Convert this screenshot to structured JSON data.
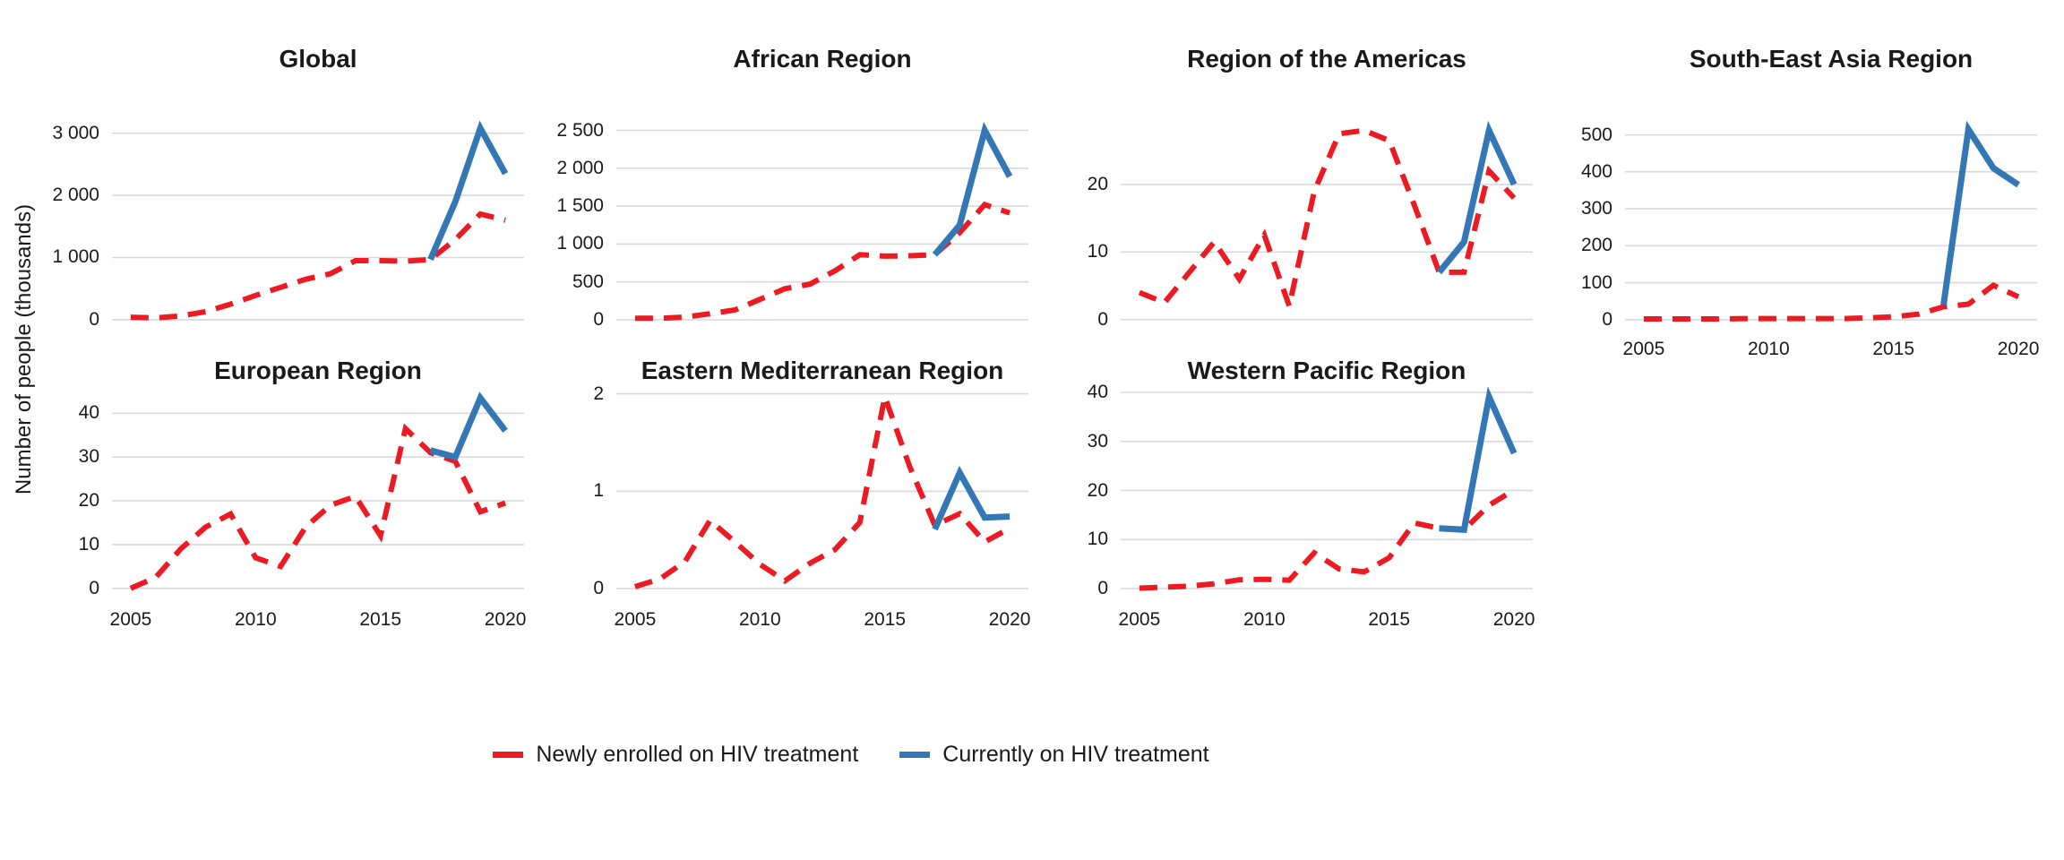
{
  "figure": {
    "y_axis_title": "Number of people (thousands)",
    "background_color": "#ffffff",
    "gridline_color": "#d9d9d9",
    "text_color": "#1a1a1a"
  },
  "legend": {
    "items": [
      {
        "label": "Newly enrolled on HIV treatment",
        "color": "#ec1b23",
        "style": "dashed"
      },
      {
        "label": "Currently on HIV treatment",
        "color": "#3377b5",
        "style": "solid"
      }
    ]
  },
  "chart_data": [
    {
      "type": "line",
      "title": "Global",
      "row": 0,
      "col": 0,
      "years": [
        2005,
        2006,
        2007,
        2008,
        2009,
        2010,
        2011,
        2012,
        2013,
        2014,
        2015,
        2016,
        2017,
        2018,
        2019,
        2020
      ],
      "xlim": [
        2004.25,
        2020.75
      ],
      "ylim": [
        -160,
        3240
      ],
      "grid": true,
      "yticks": [
        {
          "value": 0,
          "label": "0"
        },
        {
          "value": 1000,
          "label": "1 000"
        },
        {
          "value": 2000,
          "label": "2 000"
        },
        {
          "value": 3000,
          "label": "3 000"
        }
      ],
      "show_x_labels": false,
      "xticks": {
        "values": [
          2005,
          2010,
          2015,
          2020
        ],
        "labels": [
          "2005",
          "2010",
          "2015",
          "2020"
        ]
      },
      "series": [
        {
          "name": "Newly enrolled on HIV treatment",
          "role": "newly-enrolled",
          "color": "#ec1b23",
          "dashed": true,
          "x_start": 2005,
          "values": [
            40,
            30,
            60,
            130,
            250,
            390,
            520,
            650,
            740,
            950,
            950,
            940,
            970,
            1290,
            1700,
            1600
          ]
        },
        {
          "name": "Currently on HIV treatment",
          "role": "currently-on",
          "color": "#3377b5",
          "dashed": false,
          "x_start": 2017,
          "values": [
            970,
            1900,
            3080,
            2350
          ]
        }
      ]
    },
    {
      "type": "line",
      "title": "African Region",
      "row": 0,
      "col": 1,
      "years": [
        2005,
        2006,
        2007,
        2008,
        2009,
        2010,
        2011,
        2012,
        2013,
        2014,
        2015,
        2016,
        2017,
        2018,
        2019,
        2020
      ],
      "xlim": [
        2004.25,
        2020.75
      ],
      "ylim": [
        -130,
        2660
      ],
      "grid": true,
      "yticks": [
        {
          "value": 0,
          "label": "0"
        },
        {
          "value": 500,
          "label": "500"
        },
        {
          "value": 1000,
          "label": "1 000"
        },
        {
          "value": 1500,
          "label": "1 500"
        },
        {
          "value": 2000,
          "label": "2 000"
        },
        {
          "value": 2500,
          "label": "2 500"
        }
      ],
      "show_x_labels": false,
      "xticks": {
        "values": [
          2005,
          2010,
          2015,
          2020
        ],
        "labels": [
          "2005",
          "2010",
          "2015",
          "2020"
        ]
      },
      "series": [
        {
          "name": "Newly enrolled on HIV treatment",
          "role": "newly-enrolled",
          "color": "#ec1b23",
          "dashed": true,
          "x_start": 2005,
          "values": [
            20,
            20,
            35,
            80,
            130,
            270,
            410,
            470,
            645,
            860,
            840,
            845,
            860,
            1150,
            1520,
            1410
          ]
        },
        {
          "name": "Currently on HIV treatment",
          "role": "currently-on",
          "color": "#3377b5",
          "dashed": false,
          "x_start": 2017,
          "values": [
            860,
            1250,
            2500,
            1890
          ]
        }
      ]
    },
    {
      "type": "line",
      "title": "Region of the Americas",
      "row": 0,
      "col": 2,
      "years": [
        2005,
        2006,
        2007,
        2008,
        2009,
        2010,
        2011,
        2012,
        2013,
        2014,
        2015,
        2016,
        2017,
        2018,
        2019,
        2020
      ],
      "xlim": [
        2004.25,
        2020.75
      ],
      "ylim": [
        -1.5,
        29.8
      ],
      "grid": true,
      "yticks": [
        {
          "value": 0,
          "label": "0"
        },
        {
          "value": 10,
          "label": "10"
        },
        {
          "value": 20,
          "label": "20"
        }
      ],
      "show_x_labels": false,
      "xticks": {
        "values": [
          2005,
          2010,
          2015,
          2020
        ],
        "labels": [
          "2005",
          "2010",
          "2015",
          "2020"
        ]
      },
      "series": [
        {
          "name": "Newly enrolled on HIV treatment",
          "role": "newly-enrolled",
          "color": "#ec1b23",
          "dashed": true,
          "x_start": 2005,
          "values": [
            4,
            2.5,
            7,
            11.5,
            6,
            12.5,
            2,
            19,
            27.5,
            28,
            26.5,
            17,
            7,
            7,
            22,
            18
          ]
        },
        {
          "name": "Currently on HIV treatment",
          "role": "currently-on",
          "color": "#3377b5",
          "dashed": false,
          "x_start": 2017,
          "values": [
            7,
            11.5,
            28,
            20
          ]
        }
      ]
    },
    {
      "type": "line",
      "title": "South-East Asia Region",
      "row": 0,
      "col": 3,
      "years": [
        2005,
        2006,
        2007,
        2008,
        2009,
        2010,
        2011,
        2012,
        2013,
        2014,
        2015,
        2016,
        2017,
        2018,
        2019,
        2020
      ],
      "xlim": [
        2004.25,
        2020.75
      ],
      "ylim": [
        -27,
        545
      ],
      "grid": true,
      "yticks": [
        {
          "value": 0,
          "label": "0"
        },
        {
          "value": 100,
          "label": "100"
        },
        {
          "value": 200,
          "label": "200"
        },
        {
          "value": 300,
          "label": "300"
        },
        {
          "value": 400,
          "label": "400"
        },
        {
          "value": 500,
          "label": "500"
        }
      ],
      "show_x_labels": true,
      "xticks": {
        "values": [
          2005,
          2010,
          2015,
          2020
        ],
        "labels": [
          "2005",
          "2010",
          "2015",
          "2020"
        ]
      },
      "series": [
        {
          "name": "Newly enrolled on HIV treatment",
          "role": "newly-enrolled",
          "color": "#ec1b23",
          "dashed": true,
          "x_start": 2005,
          "values": [
            2,
            2,
            2,
            2,
            3,
            3,
            3,
            3,
            3,
            5,
            8,
            15,
            35,
            42,
            93,
            62
          ]
        },
        {
          "name": "Currently on HIV treatment",
          "role": "currently-on",
          "color": "#3377b5",
          "dashed": false,
          "x_start": 2017,
          "values": [
            40,
            515,
            410,
            365
          ]
        }
      ]
    },
    {
      "type": "line",
      "title": "European Region",
      "row": 1,
      "col": 0,
      "years": [
        2005,
        2006,
        2007,
        2008,
        2009,
        2010,
        2011,
        2012,
        2013,
        2014,
        2015,
        2016,
        2017,
        2018,
        2019,
        2020
      ],
      "xlim": [
        2004.25,
        2020.75
      ],
      "ylim": [
        -2.3,
        46
      ],
      "grid": true,
      "yticks": [
        {
          "value": 0,
          "label": "0"
        },
        {
          "value": 10,
          "label": "10"
        },
        {
          "value": 20,
          "label": "20"
        },
        {
          "value": 30,
          "label": "30"
        },
        {
          "value": 40,
          "label": "40"
        }
      ],
      "show_x_labels": true,
      "xticks": {
        "values": [
          2005,
          2010,
          2015,
          2020
        ],
        "labels": [
          "2005",
          "2010",
          "2015",
          "2020"
        ]
      },
      "series": [
        {
          "name": "Newly enrolled on HIV treatment",
          "role": "newly-enrolled",
          "color": "#ec1b23",
          "dashed": true,
          "x_start": 2005,
          "values": [
            0,
            2.5,
            9,
            14,
            17,
            7,
            5,
            14,
            19,
            21,
            12,
            36.5,
            31,
            29,
            17.5,
            19.5
          ]
        },
        {
          "name": "Currently on HIV treatment",
          "role": "currently-on",
          "color": "#3377b5",
          "dashed": false,
          "x_start": 2017,
          "values": [
            31.5,
            30,
            43.5,
            36
          ]
        }
      ]
    },
    {
      "type": "line",
      "title": "Eastern Mediterranean Region",
      "row": 1,
      "col": 1,
      "years": [
        2005,
        2006,
        2007,
        2008,
        2009,
        2010,
        2011,
        2012,
        2013,
        2014,
        2015,
        2016,
        2017,
        2018,
        2019,
        2020
      ],
      "xlim": [
        2004.25,
        2020.75
      ],
      "ylim": [
        -0.1,
        2.07
      ],
      "grid": true,
      "yticks": [
        {
          "value": 0,
          "label": "0"
        },
        {
          "value": 1,
          "label": "1"
        },
        {
          "value": 2,
          "label": "2"
        }
      ],
      "show_x_labels": true,
      "xticks": {
        "values": [
          2005,
          2010,
          2015,
          2020
        ],
        "labels": [
          "2005",
          "2010",
          "2015",
          "2020"
        ]
      },
      "series": [
        {
          "name": "Newly enrolled on HIV treatment",
          "role": "newly-enrolled",
          "color": "#ec1b23",
          "dashed": true,
          "x_start": 2005,
          "values": [
            0.02,
            0.1,
            0.28,
            0.7,
            0.48,
            0.25,
            0.08,
            0.26,
            0.4,
            0.68,
            1.97,
            1.25,
            0.65,
            0.77,
            0.48,
            0.62
          ]
        },
        {
          "name": "Currently on HIV treatment",
          "role": "currently-on",
          "color": "#3377b5",
          "dashed": false,
          "x_start": 2017,
          "values": [
            0.61,
            1.19,
            0.73,
            0.74
          ]
        }
      ]
    },
    {
      "type": "line",
      "title": "Western Pacific Region",
      "row": 1,
      "col": 2,
      "years": [
        2005,
        2006,
        2007,
        2008,
        2009,
        2010,
        2011,
        2012,
        2013,
        2014,
        2015,
        2016,
        2017,
        2018,
        2019,
        2020
      ],
      "xlim": [
        2004.25,
        2020.75
      ],
      "ylim": [
        -2.0,
        41.1
      ],
      "grid": true,
      "yticks": [
        {
          "value": 0,
          "label": "0"
        },
        {
          "value": 10,
          "label": "10"
        },
        {
          "value": 20,
          "label": "20"
        },
        {
          "value": 30,
          "label": "30"
        },
        {
          "value": 40,
          "label": "40"
        }
      ],
      "show_x_labels": true,
      "xticks": {
        "values": [
          2005,
          2010,
          2015,
          2020
        ],
        "labels": [
          "2005",
          "2010",
          "2015",
          "2020"
        ]
      },
      "series": [
        {
          "name": "Newly enrolled on HIV treatment",
          "role": "newly-enrolled",
          "color": "#ec1b23",
          "dashed": true,
          "x_start": 2005,
          "values": [
            0.1,
            0.3,
            0.5,
            1,
            1.8,
            1.9,
            1.7,
            7.3,
            4,
            3.4,
            6.3,
            13.4,
            12.3,
            12,
            17,
            20.1
          ]
        },
        {
          "name": "Currently on HIV treatment",
          "role": "currently-on",
          "color": "#3377b5",
          "dashed": false,
          "x_start": 2017,
          "values": [
            12.3,
            12,
            39.1,
            27.6
          ]
        }
      ]
    }
  ]
}
